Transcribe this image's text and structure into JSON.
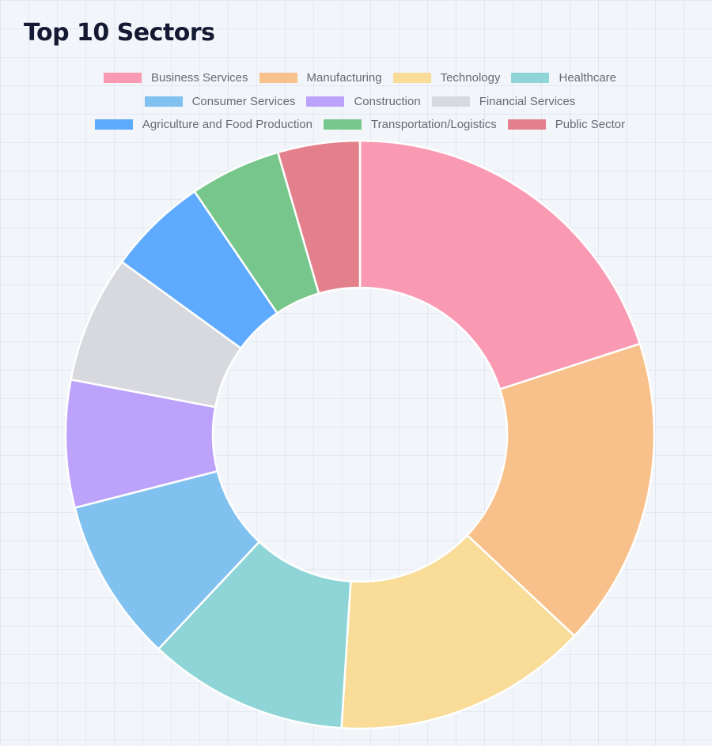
{
  "chart_data": {
    "type": "doughnut",
    "title": "Top 10 Sectors",
    "legend_position": "top",
    "categories": [
      "Business Services",
      "Manufacturing",
      "Technology",
      "Healthcare",
      "Consumer Services",
      "Construction",
      "Financial Services",
      "Agriculture and Food Production",
      "Transportation/Logistics",
      "Public Sector"
    ],
    "values": [
      20,
      17,
      14,
      11,
      9,
      7,
      7,
      5.5,
      5,
      4.5
    ],
    "colors": [
      "#f99ab2",
      "#f8c18b",
      "#f8dc98",
      "#8fd5d7",
      "#80c1f0",
      "#bda2fb",
      "#d8d9de",
      "#5eaafe",
      "#77c68b",
      "#e4808b"
    ],
    "legend_rows": [
      [
        0,
        1,
        2,
        3
      ],
      [
        4,
        5,
        6
      ],
      [
        7,
        8,
        9
      ]
    ]
  }
}
